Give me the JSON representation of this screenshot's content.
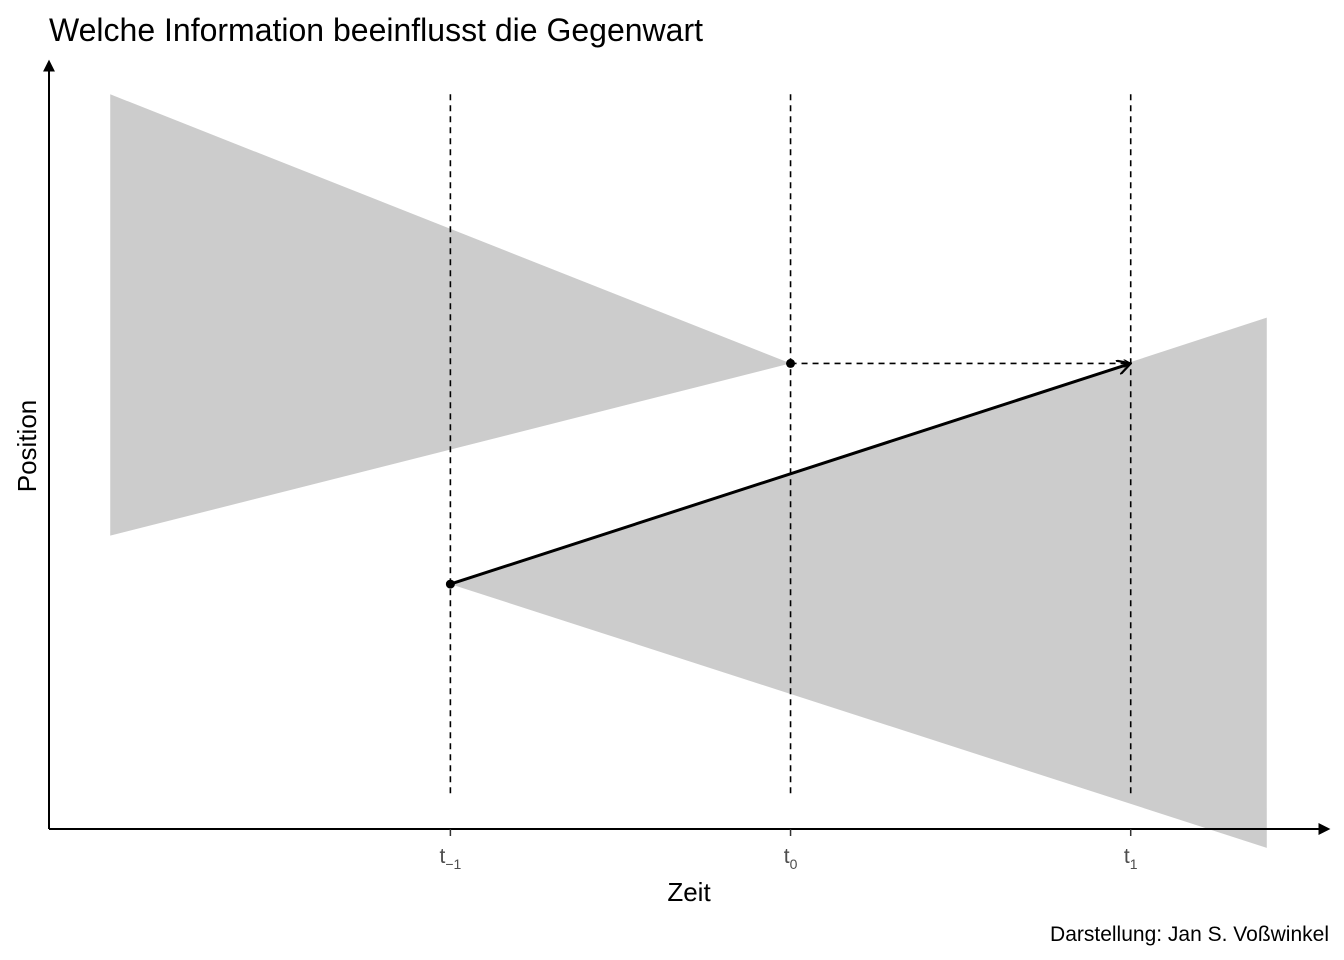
{
  "chart_data": {
    "type": "area",
    "title": "Welche Information beeinflusst die Gegenwart",
    "xlabel": "Zeit",
    "ylabel": "Position",
    "caption": "Darstellung: Jan S. Voßwinkel",
    "xlim": [
      -2.18,
      1.58
    ],
    "ylim": [
      -1.73,
      1.12
    ],
    "grid": false,
    "ticks": [
      {
        "value": -1,
        "base": "t",
        "sub": "−1"
      },
      {
        "value": 0,
        "base": "t",
        "sub": "0"
      },
      {
        "value": 1,
        "base": "t",
        "sub": "1"
      }
    ],
    "vlines": [
      -1,
      0,
      1
    ],
    "cones": [
      {
        "name": "",
        "x": [
          -2,
          0
        ],
        "upper": [
          1.0,
          0.0
        ],
        "lower": [
          -0.64,
          0.0
        ],
        "color": "#cccccc"
      },
      {
        "name": "",
        "x": [
          -1,
          1.4
        ],
        "upper": [
          -0.82,
          0.17
        ],
        "lower": [
          -0.82,
          -1.8
        ],
        "color": "#cccccc"
      }
    ],
    "points": [
      {
        "x": -1,
        "y": -0.82
      },
      {
        "x": 0,
        "y": 0.0
      }
    ],
    "arrows": [
      {
        "from": [
          -1,
          -0.82
        ],
        "to": [
          1,
          0.0
        ],
        "style": "solid"
      },
      {
        "from": [
          0,
          0.0
        ],
        "to": [
          1,
          0.0
        ],
        "style": "dashed"
      }
    ]
  }
}
